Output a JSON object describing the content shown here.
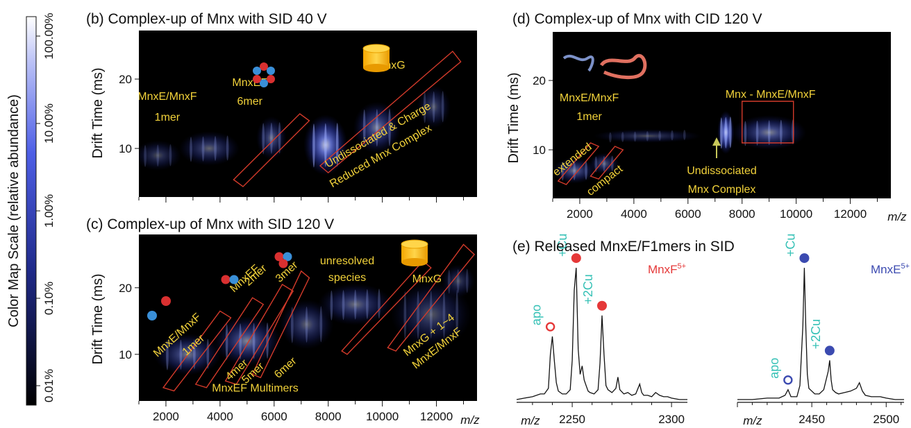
{
  "colorbar": {
    "title": "Color Map Scale (relative abundance)",
    "ticks": [
      "100.00%",
      "10.00%",
      "1.00%",
      "0.10%",
      "0.01%"
    ],
    "log_scale": true,
    "colors": {
      "low": "#000000",
      "mid": "#3a4ad8",
      "high": "#ffffff"
    }
  },
  "chart_data": [
    {
      "id": "b",
      "type": "heatmap",
      "title": "(b) Complex-up of Mnx with SID 40 V",
      "xlabel": "",
      "ylabel": "Drift Time (ms)",
      "xlim": [
        1000,
        13500
      ],
      "ylim": [
        3,
        27
      ],
      "x_ticks": [],
      "y_ticks": [
        10,
        20
      ],
      "blobs": [
        {
          "x": 1700,
          "y": 9,
          "w": 1400,
          "h": 3.5,
          "i": 0.35
        },
        {
          "x": 3600,
          "y": 10,
          "w": 1800,
          "h": 4,
          "i": 0.45
        },
        {
          "x": 5900,
          "y": 11.5,
          "w": 900,
          "h": 5,
          "i": 0.5
        },
        {
          "x": 7900,
          "y": 10.5,
          "w": 1300,
          "h": 7,
          "i": 0.9
        },
        {
          "x": 9800,
          "y": 13,
          "w": 1400,
          "h": 6,
          "i": 0.6
        },
        {
          "x": 11900,
          "y": 16,
          "w": 1000,
          "h": 5,
          "i": 0.4
        }
      ],
      "annotations": [
        {
          "text": "MnxE/MnxF",
          "x": 2050,
          "y": 17
        },
        {
          "text": "1mer",
          "x": 2050,
          "y": 14
        },
        {
          "text": "MnxEF",
          "x": 5100,
          "y": 19
        },
        {
          "text": "6mer",
          "x": 5100,
          "y": 16.3
        },
        {
          "text": "MnxG",
          "x": 10300,
          "y": 21.5
        },
        {
          "text": "Undissociated & Charge",
          "x": 9900,
          "y": 11.5,
          "rotate": -30
        },
        {
          "text": "Reduced Mnx Complex",
          "x": 10000,
          "y": 8.5,
          "rotate": -30
        }
      ],
      "boxes": [
        {
          "points": [
            [
              4500,
              5.5
            ],
            [
              4850,
              4.5
            ],
            [
              7300,
              14
            ],
            [
              6950,
              15
            ]
          ]
        },
        {
          "points": [
            [
              7700,
              7.5
            ],
            [
              8000,
              6.5
            ],
            [
              12900,
              22.5
            ],
            [
              12600,
              24
            ]
          ]
        }
      ]
    },
    {
      "id": "c",
      "type": "heatmap",
      "title": "(c) Complex-up of Mnx with SID 120 V",
      "xlabel": "m/z",
      "ylabel": "Drift Time (ms)",
      "xlim": [
        1000,
        13500
      ],
      "ylim": [
        3,
        28
      ],
      "x_ticks": [
        2000,
        4000,
        6000,
        8000,
        10000,
        12000
      ],
      "y_ticks": [
        10,
        20
      ],
      "blobs": [
        {
          "x": 2800,
          "y": 10,
          "w": 2000,
          "h": 5,
          "i": 0.55
        },
        {
          "x": 5000,
          "y": 12,
          "w": 2000,
          "h": 6,
          "i": 0.6
        },
        {
          "x": 7200,
          "y": 14.5,
          "w": 1600,
          "h": 6,
          "i": 0.45
        },
        {
          "x": 9000,
          "y": 17.5,
          "w": 2200,
          "h": 5,
          "i": 0.5
        },
        {
          "x": 11800,
          "y": 16,
          "w": 2400,
          "h": 8,
          "i": 0.4
        },
        {
          "x": 12800,
          "y": 21,
          "w": 1000,
          "h": 4,
          "i": 0.35
        }
      ],
      "annotations": [
        {
          "text": "MnxE/MnxF",
          "x": 2500,
          "y": 12.5,
          "rotate": -42
        },
        {
          "text": "1mer",
          "x": 3100,
          "y": 11,
          "rotate": -42
        },
        {
          "text": "MnxEF",
          "x": 5000,
          "y": 21,
          "rotate": -42
        },
        {
          "text": "2mer",
          "x": 5400,
          "y": 21.5,
          "rotate": -42
        },
        {
          "text": "3mer",
          "x": 6550,
          "y": 22,
          "rotate": -42
        },
        {
          "text": "unresolved",
          "x": 8700,
          "y": 23.5
        },
        {
          "text": "species",
          "x": 8700,
          "y": 21
        },
        {
          "text": "MnxG",
          "x": 11650,
          "y": 20.8
        },
        {
          "text": "4mer",
          "x": 4700,
          "y": 7.3,
          "rotate": -42
        },
        {
          "text": "5mer",
          "x": 5300,
          "y": 6.8,
          "rotate": -42
        },
        {
          "text": "6mer",
          "x": 6500,
          "y": 7.6,
          "rotate": -42
        },
        {
          "text": "MnxEF Multimers",
          "x": 5300,
          "y": 4.4
        },
        {
          "text": "MnxG + 1~4",
          "x": 11800,
          "y": 12.5,
          "rotate": -38
        },
        {
          "text": "MnxE/MnxF",
          "x": 12100,
          "y": 10.5,
          "rotate": -38
        }
      ],
      "boxes": [
        {
          "points": [
            [
              1900,
              5
            ],
            [
              2300,
              4.5
            ],
            [
              4400,
              15.5
            ],
            [
              4000,
              16.5
            ]
          ]
        },
        {
          "points": [
            [
              3100,
              5.5
            ],
            [
              3500,
              5
            ],
            [
              5600,
              17.5
            ],
            [
              5200,
              18.5
            ]
          ]
        },
        {
          "points": [
            [
              4200,
              6
            ],
            [
              4600,
              5.5
            ],
            [
              6700,
              19.5
            ],
            [
              6300,
              20.5
            ]
          ]
        },
        {
          "points": [
            [
              5200,
              7
            ],
            [
              5500,
              6.5
            ],
            [
              7300,
              21.5
            ],
            [
              7000,
              22.5
            ]
          ]
        },
        {
          "points": [
            [
              8500,
              10.5
            ],
            [
              8700,
              10
            ],
            [
              11800,
              23
            ],
            [
              11500,
              24
            ]
          ]
        },
        {
          "points": [
            [
              10200,
              11
            ],
            [
              10500,
              10.5
            ],
            [
              13400,
              25
            ],
            [
              13000,
              26.5
            ]
          ]
        }
      ]
    },
    {
      "id": "d",
      "type": "heatmap",
      "title": "(d) Complex-up of Mnx with CID 120 V",
      "xlabel": "m/z",
      "ylabel": "Drift Time (ms)",
      "xlim": [
        1000,
        13500
      ],
      "ylim": [
        3,
        27
      ],
      "x_ticks": [
        2000,
        4000,
        6000,
        8000,
        10000,
        12000
      ],
      "y_ticks": [
        10,
        20
      ],
      "blobs": [
        {
          "x": 1800,
          "y": 7,
          "w": 1300,
          "h": 3,
          "i": 0.55
        },
        {
          "x": 2900,
          "y": 8,
          "w": 900,
          "h": 2.5,
          "i": 0.45
        },
        {
          "x": 4500,
          "y": 12,
          "w": 3200,
          "h": 1.6,
          "i": 0.35
        },
        {
          "x": 7400,
          "y": 12.5,
          "w": 500,
          "h": 5,
          "i": 0.95
        },
        {
          "x": 9000,
          "y": 12.5,
          "w": 2200,
          "h": 4,
          "i": 0.6
        }
      ],
      "annotations": [
        {
          "text": "MnxE/MnxF",
          "x": 2350,
          "y": 17
        },
        {
          "text": "1mer",
          "x": 2350,
          "y": 14.3
        },
        {
          "text": "Mnx - MnxE/MnxF",
          "x": 9050,
          "y": 17.5
        },
        {
          "text": "extended",
          "x": 1800,
          "y": 8.2,
          "rotate": -38
        },
        {
          "text": "compact",
          "x": 3000,
          "y": 5.2,
          "rotate": -38
        },
        {
          "text": "Undissociated",
          "x": 7250,
          "y": 6.5
        },
        {
          "text": "Mnx Complex",
          "x": 7250,
          "y": 3.8
        }
      ],
      "boxes": [
        {
          "points": [
            [
              1200,
              5.5
            ],
            [
              1500,
              5
            ],
            [
              2700,
              10.5
            ],
            [
              2400,
              11
            ]
          ]
        },
        {
          "points": [
            [
              2400,
              6.2
            ],
            [
              2700,
              5.8
            ],
            [
              3600,
              10
            ],
            [
              3300,
              10.5
            ]
          ]
        },
        {
          "points": [
            [
              8000,
              11
            ],
            [
              9900,
              11
            ],
            [
              9900,
              17
            ],
            [
              8000,
              17
            ]
          ]
        }
      ]
    },
    {
      "id": "e1",
      "type": "line",
      "title": "(e) Released MnxE/F1mers in SID",
      "ion": "MnxF",
      "charge": "5+",
      "xlabel": "m/z",
      "xlim": [
        2222,
        2308
      ],
      "ylim": [
        0,
        100
      ],
      "x_ticks": [
        2250,
        2300
      ],
      "x": [
        2222,
        2226,
        2230,
        2234,
        2236,
        2238,
        2239,
        2240,
        2241,
        2242,
        2243,
        2245,
        2247,
        2249,
        2250,
        2251,
        2252,
        2253,
        2254,
        2255,
        2256,
        2257,
        2258,
        2259,
        2261,
        2263,
        2264,
        2265,
        2266,
        2267,
        2268,
        2270,
        2272,
        2273,
        2274,
        2276,
        2278,
        2280,
        2282,
        2284,
        2285,
        2286,
        2288,
        2290,
        2292,
        2294,
        2296,
        2298,
        2300,
        2304,
        2308
      ],
      "y": [
        2,
        3,
        4,
        6,
        6,
        10,
        34,
        47,
        30,
        14,
        8,
        6,
        6,
        9,
        30,
        80,
        96,
        38,
        20,
        26,
        16,
        12,
        8,
        7,
        6,
        9,
        28,
        62,
        34,
        12,
        9,
        7,
        10,
        18,
        9,
        6,
        7,
        5,
        6,
        13,
        7,
        5,
        5,
        4,
        7,
        5,
        4,
        4,
        3,
        2,
        2
      ],
      "peaks": [
        {
          "label": "apo",
          "x": 2239,
          "y": 47,
          "marker": "open"
        },
        {
          "label": "+Cu",
          "x": 2252,
          "y": 96,
          "marker": "filled"
        },
        {
          "label": "+2Cu",
          "x": 2265,
          "y": 62,
          "marker": "filled"
        }
      ],
      "marker_color": "#e53838"
    },
    {
      "id": "e2",
      "type": "line",
      "title": "",
      "ion": "MnxE",
      "charge": "5+",
      "xlabel": "m/z",
      "xlim": [
        2400,
        2512
      ],
      "ylim": [
        0,
        100
      ],
      "x_ticks": [
        2450,
        2500
      ],
      "x": [
        2400,
        2410,
        2420,
        2428,
        2432,
        2434,
        2436,
        2440,
        2442,
        2444,
        2445,
        2446,
        2447,
        2448,
        2449,
        2450,
        2452,
        2455,
        2458,
        2461,
        2462,
        2463,
        2464,
        2466,
        2468,
        2472,
        2476,
        2480,
        2482,
        2484,
        2486,
        2490,
        2496,
        2500,
        2506,
        2512
      ],
      "y": [
        2,
        2,
        3,
        3,
        5,
        9,
        4,
        4,
        12,
        55,
        96,
        52,
        20,
        10,
        9,
        8,
        6,
        6,
        9,
        22,
        30,
        16,
        9,
        7,
        6,
        7,
        8,
        10,
        14,
        8,
        5,
        4,
        4,
        3,
        2,
        2
      ],
      "peaks": [
        {
          "label": "apo",
          "x": 2434,
          "y": 9,
          "marker": "open"
        },
        {
          "label": "+Cu",
          "x": 2445,
          "y": 96,
          "marker": "filled"
        },
        {
          "label": "+2Cu",
          "x": 2462,
          "y": 30,
          "marker": "filled"
        }
      ],
      "marker_color": "#3b4ab0"
    }
  ]
}
